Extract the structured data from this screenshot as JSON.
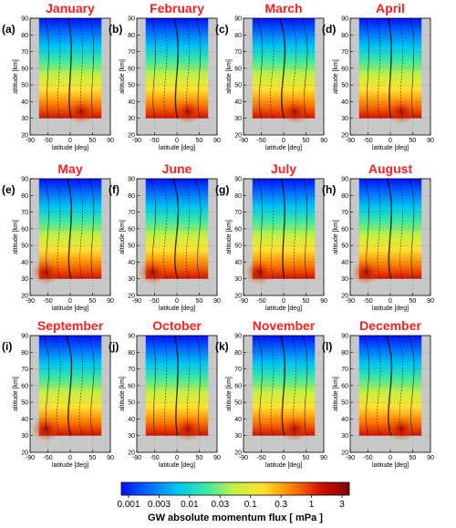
{
  "chart_data": {
    "type": "heatmap",
    "panels": [
      {
        "label": "(a)",
        "title": "January",
        "col": 0,
        "row": 0
      },
      {
        "label": "(b)",
        "title": "February",
        "col": 1,
        "row": 0
      },
      {
        "label": "(c)",
        "title": "March",
        "col": 2,
        "row": 0
      },
      {
        "label": "(d)",
        "title": "April",
        "col": 3,
        "row": 0
      },
      {
        "label": "(e)",
        "title": "May",
        "col": 0,
        "row": 1
      },
      {
        "label": "(f)",
        "title": "June",
        "col": 1,
        "row": 1
      },
      {
        "label": "(g)",
        "title": "July",
        "col": 2,
        "row": 1
      },
      {
        "label": "(h)",
        "title": "August",
        "col": 3,
        "row": 1
      },
      {
        "label": "(i)",
        "title": "September",
        "col": 0,
        "row": 2
      },
      {
        "label": "(j)",
        "title": "October",
        "col": 1,
        "row": 2
      },
      {
        "label": "(k)",
        "title": "November",
        "col": 2,
        "row": 2
      },
      {
        "label": "(l)",
        "title": "December",
        "col": 3,
        "row": 2
      }
    ],
    "xlabel": "latitude [deg]",
    "ylabel": "altitude [km]",
    "xlim": [
      -90,
      90
    ],
    "ylim": [
      20,
      90
    ],
    "xticks": [
      -90,
      -50,
      0,
      50,
      90
    ],
    "yticks": [
      20,
      30,
      40,
      50,
      60,
      70,
      80,
      90
    ],
    "data_latitude_range": [
      -70,
      70
    ],
    "data_altitude_range": [
      30,
      90
    ],
    "colorbar": {
      "label": "GW absolute momentum flux   [ mPa ]",
      "ticks": [
        "0.001",
        "0.003",
        "0.01",
        "0.03",
        "0.1",
        "0.3",
        "1",
        "3"
      ],
      "scale": "log",
      "colors": [
        "#0010ff",
        "#0070ff",
        "#00c8f0",
        "#40e8a0",
        "#c8f040",
        "#ffe030",
        "#ff8000",
        "#d01000",
        "#800000"
      ]
    },
    "grid": true
  }
}
